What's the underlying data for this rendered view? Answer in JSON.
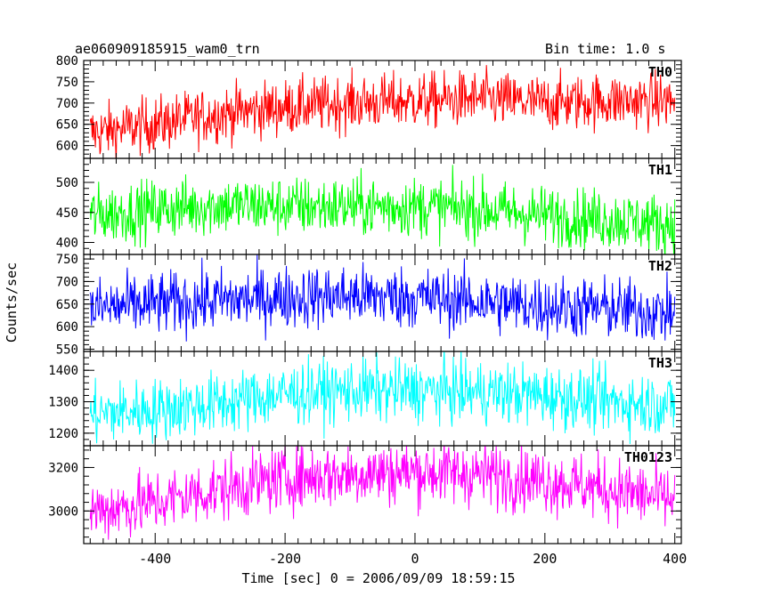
{
  "title": "ae060909185915_wam0_trn",
  "bin_time": "Bin time: 1.0 s",
  "ylabel": "Counts/sec",
  "xlabel": "Time [sec] 0 = 2006/09/09 18:59:15",
  "chart_data": {
    "type": "line",
    "title": "ae060909185915_wam0_trn",
    "xlabel": "Time [sec] 0 = 2006/09/09 18:59:15",
    "ylabel": "Counts/sec",
    "xlim": [
      -510,
      410
    ],
    "x_ticks": [
      -400,
      -200,
      0,
      200,
      400
    ],
    "x_range": [
      -500,
      400
    ],
    "bin_time_s": 1.0,
    "panels": [
      {
        "name": "TH0",
        "color": "#ff0000",
        "ylim": [
          570,
          800
        ],
        "y_ticks": [
          600,
          650,
          700,
          750,
          800
        ],
        "trend": [
          [
            -500,
            630
          ],
          [
            -400,
            650
          ],
          [
            -300,
            675
          ],
          [
            -200,
            690
          ],
          [
            -100,
            700
          ],
          [
            0,
            705
          ],
          [
            100,
            710
          ],
          [
            200,
            700
          ],
          [
            300,
            705
          ],
          [
            400,
            705
          ]
        ],
        "noise": 33
      },
      {
        "name": "TH1",
        "color": "#00ff00",
        "ylim": [
          380,
          540
        ],
        "y_ticks": [
          400,
          450,
          500
        ],
        "trend": [
          [
            -500,
            445
          ],
          [
            -400,
            455
          ],
          [
            -300,
            462
          ],
          [
            -200,
            460
          ],
          [
            -100,
            460
          ],
          [
            0,
            460
          ],
          [
            100,
            455
          ],
          [
            200,
            445
          ],
          [
            300,
            438
          ],
          [
            400,
            430
          ]
        ],
        "noise": 25
      },
      {
        "name": "TH2",
        "color": "#0000ff",
        "ylim": [
          545,
          760
        ],
        "y_ticks": [
          550,
          600,
          650,
          700,
          750
        ],
        "trend": [
          [
            -500,
            640
          ],
          [
            -400,
            650
          ],
          [
            -300,
            658
          ],
          [
            -200,
            665
          ],
          [
            -100,
            668
          ],
          [
            0,
            665
          ],
          [
            100,
            655
          ],
          [
            200,
            645
          ],
          [
            300,
            640
          ],
          [
            400,
            630
          ]
        ],
        "noise": 35
      },
      {
        "name": "TH3",
        "color": "#00ffff",
        "ylim": [
          1160,
          1460
        ],
        "y_ticks": [
          1200,
          1300,
          1400
        ],
        "trend": [
          [
            -500,
            1260
          ],
          [
            -400,
            1275
          ],
          [
            -300,
            1295
          ],
          [
            -200,
            1325
          ],
          [
            -100,
            1335
          ],
          [
            0,
            1335
          ],
          [
            100,
            1330
          ],
          [
            200,
            1320
          ],
          [
            300,
            1300
          ],
          [
            400,
            1290
          ]
        ],
        "noise": 50
      },
      {
        "name": "TH0123",
        "color": "#ff00ff",
        "ylim": [
          2850,
          3300
        ],
        "y_ticks": [
          3000,
          3200
        ],
        "trend": [
          [
            -500,
            3000
          ],
          [
            -400,
            3040
          ],
          [
            -300,
            3100
          ],
          [
            -200,
            3150
          ],
          [
            -100,
            3170
          ],
          [
            0,
            3180
          ],
          [
            100,
            3170
          ],
          [
            200,
            3140
          ],
          [
            300,
            3100
          ],
          [
            400,
            3050
          ]
        ],
        "noise": 75
      }
    ]
  }
}
